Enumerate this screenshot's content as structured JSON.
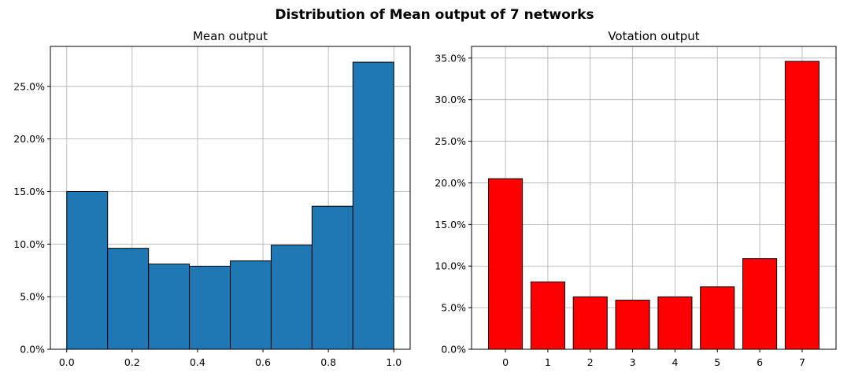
{
  "figure_title": "Distribution of Mean output of 7 networks",
  "chart_data": [
    {
      "type": "bar",
      "subtype": "histogram",
      "title": "Mean output",
      "bin_edges": [
        0.0,
        0.125,
        0.25,
        0.375,
        0.5,
        0.625,
        0.75,
        0.875,
        1.0
      ],
      "values": [
        15.0,
        9.6,
        8.1,
        7.9,
        8.4,
        9.9,
        13.6,
        27.3
      ],
      "xlim": [
        -0.05,
        1.05
      ],
      "ylim": [
        0,
        28.8
      ],
      "xticks": [
        0.0,
        0.2,
        0.4,
        0.6,
        0.8,
        1.0
      ],
      "xtick_labels": [
        "0.0",
        "0.2",
        "0.4",
        "0.6",
        "0.8",
        "1.0"
      ],
      "yticks": [
        0,
        5,
        10,
        15,
        20,
        25
      ],
      "ytick_labels": [
        "0.0%",
        "5.0%",
        "10.0%",
        "15.0%",
        "20.0%",
        "25.0%"
      ],
      "bar_color": "#1f77b4",
      "edge_color": "#000000",
      "grid": true
    },
    {
      "type": "bar",
      "title": "Votation output",
      "categories": [
        "0",
        "1",
        "2",
        "3",
        "4",
        "5",
        "6",
        "7"
      ],
      "values": [
        20.5,
        8.1,
        6.3,
        5.9,
        6.3,
        7.5,
        10.9,
        34.6
      ],
      "xlim": [
        -0.8,
        7.8
      ],
      "ylim": [
        0,
        36.4
      ],
      "yticks": [
        0,
        5,
        10,
        15,
        20,
        25,
        30,
        35
      ],
      "ytick_labels": [
        "0.0%",
        "5.0%",
        "10.0%",
        "15.0%",
        "20.0%",
        "25.0%",
        "30.0%",
        "35.0%"
      ],
      "bar_color": "#ff0000",
      "edge_color": "#000000",
      "grid": true
    }
  ]
}
